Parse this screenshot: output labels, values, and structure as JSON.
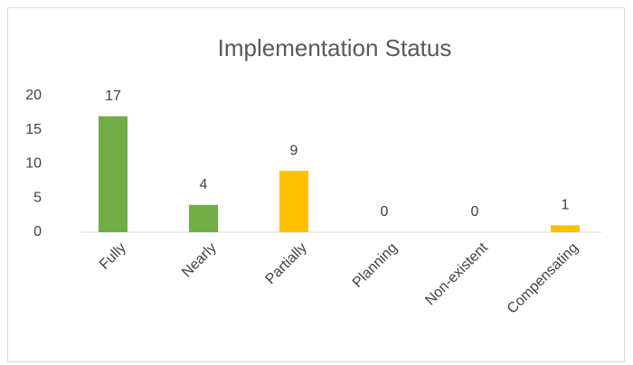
{
  "chart_data": {
    "type": "bar",
    "title": "Implementation Status",
    "categories": [
      "Fully",
      "Nearly",
      "Partially",
      "Planning",
      "Non-existent",
      "Compensating"
    ],
    "values": [
      17,
      4,
      9,
      0,
      0,
      1
    ],
    "colors": [
      "#70ad47",
      "#70ad47",
      "#ffc000",
      "#ffc000",
      "#ffc000",
      "#ffc000"
    ],
    "ylim": [
      0,
      20
    ],
    "yticks": [
      0,
      5,
      10,
      15,
      20
    ],
    "grid": false
  }
}
